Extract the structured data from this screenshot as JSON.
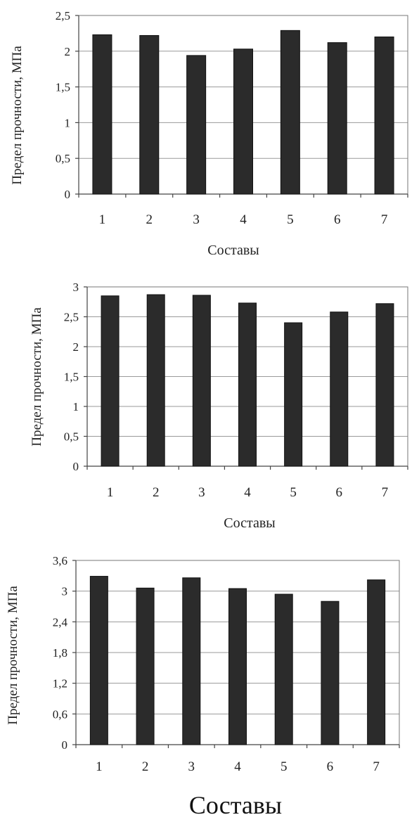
{
  "chart_data": [
    {
      "type": "bar",
      "categories": [
        "1",
        "2",
        "3",
        "4",
        "5",
        "6",
        "7"
      ],
      "values": [
        2.23,
        2.22,
        1.94,
        2.03,
        2.29,
        2.12,
        2.2
      ],
      "ylabel": "Предел прочности, МПа",
      "xlabel": "Составы",
      "ylim": [
        0,
        2.5
      ],
      "yticks": [
        "0",
        "0,5",
        "1",
        "1,5",
        "2",
        "2,5"
      ],
      "grid": true
    },
    {
      "type": "bar",
      "categories": [
        "1",
        "2",
        "3",
        "4",
        "5",
        "6",
        "7"
      ],
      "values": [
        2.85,
        2.87,
        2.86,
        2.73,
        2.4,
        2.58,
        2.72
      ],
      "ylabel": "Предел прочности, МПа",
      "xlabel": "Составы",
      "ylim": [
        0,
        3
      ],
      "yticks": [
        "0",
        "0,5",
        "1",
        "1,5",
        "2",
        "2,5",
        "3"
      ],
      "grid": true
    },
    {
      "type": "bar",
      "categories": [
        "1",
        "2",
        "3",
        "4",
        "5",
        "6",
        "7"
      ],
      "values": [
        3.29,
        3.06,
        3.26,
        3.05,
        2.94,
        2.8,
        3.22
      ],
      "ylabel": "Предел прочности, МПа",
      "xlabel": "Составы",
      "ylim": [
        0,
        3.6
      ],
      "yticks": [
        "0",
        "0,6",
        "1,2",
        "1,8",
        "2,4",
        "3",
        "3,6"
      ],
      "grid": true
    }
  ]
}
